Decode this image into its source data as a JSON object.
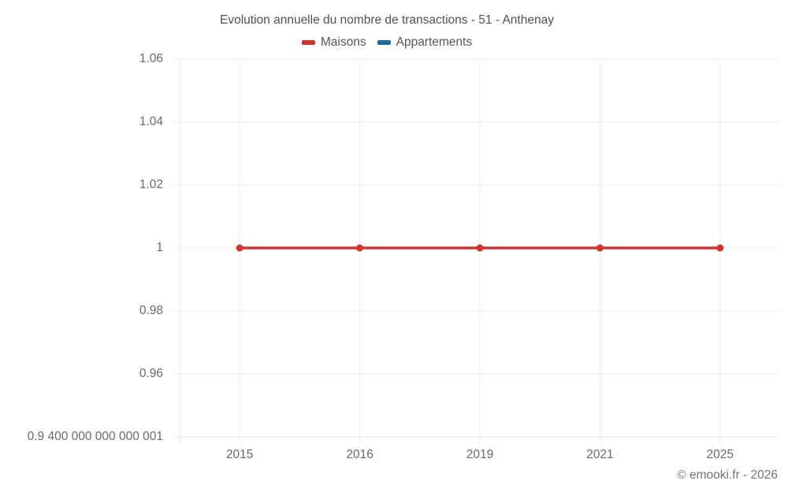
{
  "title": "Evolution annuelle du nombre de transactions - 51 - Anthenay",
  "attribution": "© emooki.fr - 2026",
  "legend": {
    "items": [
      {
        "label": "Maisons",
        "color": "#d3332b"
      },
      {
        "label": "Appartements",
        "color": "#1a6da1"
      }
    ]
  },
  "chart_data": {
    "type": "line",
    "title": "Evolution annuelle du nombre de transactions - 51 - Anthenay",
    "categories": [
      "2015",
      "2016",
      "2019",
      "2021",
      "2025"
    ],
    "series": [
      {
        "name": "Maisons",
        "color": "#d3332b",
        "values": [
          1,
          1,
          1,
          1,
          1
        ]
      },
      {
        "name": "Appartements",
        "color": "#1a6da1",
        "values": []
      }
    ],
    "ylim": [
      0.94,
      1.06
    ],
    "y_tick_values": [
      1.06,
      1.04,
      1.02,
      1,
      0.98,
      0.96,
      0.94
    ],
    "y_tick_labels": [
      "1.06",
      "1.04",
      "1.02",
      "1",
      "0.98",
      "0.96",
      "0.9 400 000 000 000 001"
    ],
    "xlabel": "",
    "ylabel": "",
    "grid": true,
    "legend_position": "top",
    "marker": "circle"
  },
  "colors": {
    "grid": "#ececec",
    "axis": "#e8e8e8",
    "tick_label": "#6b6b6b",
    "title": "#525252",
    "attribution": "#757575"
  }
}
